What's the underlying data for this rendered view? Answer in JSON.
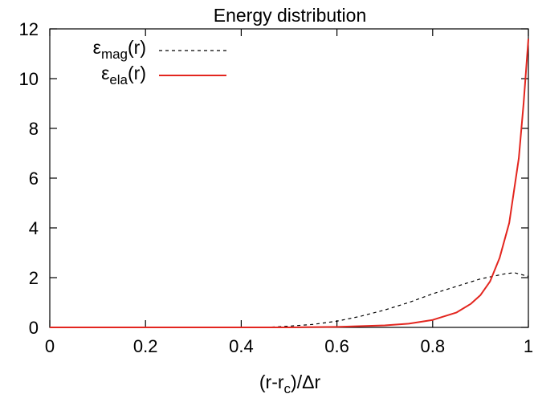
{
  "chart_data": {
    "type": "line",
    "title": "Energy distribution",
    "xlabel": {
      "prefix": "(r-r",
      "sub": "c",
      "suffix": ")/Δr"
    },
    "ylabel": "",
    "xlim": [
      0,
      1
    ],
    "ylim": [
      0,
      12
    ],
    "x_ticks": [
      "0",
      "0.2",
      "0.4",
      "0.6",
      "0.8",
      "1"
    ],
    "y_ticks": [
      "0",
      "2",
      "4",
      "6",
      "8",
      "10",
      "12"
    ],
    "x_tick_values": [
      0,
      0.2,
      0.4,
      0.6,
      0.8,
      1.0
    ],
    "y_tick_values": [
      0,
      2,
      4,
      6,
      8,
      10,
      12
    ],
    "grid": false,
    "legend_position": "top-left",
    "series": [
      {
        "name": {
          "base": "ε",
          "sub": "mag",
          "suffix": "(r)"
        },
        "style": "dashed",
        "color": "#000000",
        "x": [
          0.45,
          0.5,
          0.55,
          0.6,
          0.65,
          0.7,
          0.75,
          0.8,
          0.85,
          0.9,
          0.95,
          0.97,
          1.0
        ],
        "y": [
          0.0,
          0.05,
          0.12,
          0.25,
          0.45,
          0.7,
          1.0,
          1.35,
          1.65,
          1.95,
          2.15,
          2.2,
          2.05
        ]
      },
      {
        "name": {
          "base": "ε",
          "sub": "ela",
          "suffix": "(r)"
        },
        "style": "solid",
        "color": "#e3261f",
        "x": [
          0.0,
          0.5,
          0.6,
          0.7,
          0.75,
          0.8,
          0.85,
          0.88,
          0.9,
          0.92,
          0.94,
          0.96,
          0.98,
          0.99,
          1.0
        ],
        "y": [
          0.0,
          0.0,
          0.02,
          0.08,
          0.15,
          0.3,
          0.6,
          0.95,
          1.3,
          1.85,
          2.8,
          4.2,
          6.8,
          9.0,
          11.6
        ]
      }
    ]
  }
}
